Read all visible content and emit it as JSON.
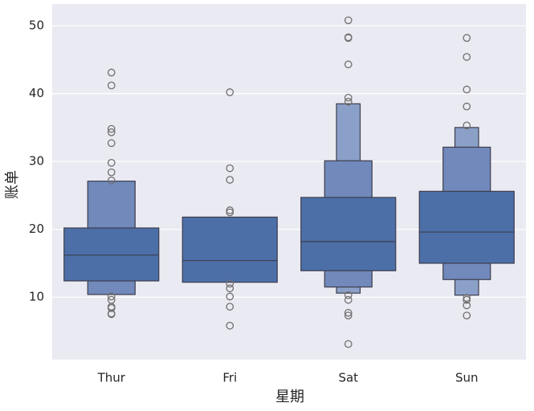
{
  "chart_data": {
    "type": "boxen",
    "xlabel": "星期",
    "ylabel": "账单",
    "categories": [
      "Thur",
      "Fri",
      "Sat",
      "Sun"
    ],
    "groups": [
      {
        "boxes": [
          [
            12.4,
            20.2
          ],
          [
            10.4,
            27.1
          ]
        ],
        "median": 16.2,
        "outliers": [
          43.1,
          41.2,
          34.8,
          34.3,
          32.7,
          29.8,
          28.4,
          27.2,
          10.1,
          9.6,
          8.6,
          8.4,
          7.6,
          7.5
        ]
      },
      {
        "boxes": [
          [
            12.2,
            21.8
          ]
        ],
        "median": 15.4,
        "outliers": [
          40.2,
          29.0,
          27.3,
          22.8,
          22.5,
          12.0,
          11.3,
          10.1,
          8.6,
          5.8
        ]
      },
      {
        "boxes": [
          [
            13.9,
            24.7
          ],
          [
            11.5,
            30.1
          ],
          [
            10.6,
            38.5
          ]
        ],
        "median": 18.2,
        "outliers": [
          50.8,
          48.3,
          48.2,
          44.3,
          39.4,
          38.8,
          10.3,
          9.6,
          7.7,
          7.3,
          3.1
        ]
      },
      {
        "boxes": [
          [
            15.0,
            25.6
          ],
          [
            12.6,
            32.1
          ],
          [
            10.3,
            35.0
          ]
        ],
        "median": 19.6,
        "outliers": [
          48.2,
          45.4,
          40.6,
          38.1,
          35.3,
          9.9,
          9.6,
          8.8,
          7.3
        ]
      }
    ],
    "level_colors": [
      "#4c6fa8",
      "#7189bb",
      "#8ba0c8"
    ],
    "edge_color": "#3d3d4d",
    "ylim": [
      0.8,
      53.2
    ],
    "yticks": [
      10,
      20,
      30,
      40,
      50
    ],
    "grid": true
  }
}
